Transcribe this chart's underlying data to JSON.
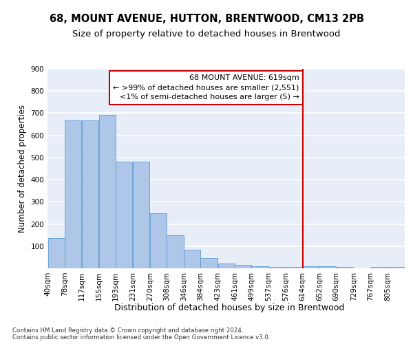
{
  "title": "68, MOUNT AVENUE, HUTTON, BRENTWOOD, CM13 2PB",
  "subtitle": "Size of property relative to detached houses in Brentwood",
  "xlabel": "Distribution of detached houses by size in Brentwood",
  "ylabel": "Number of detached properties",
  "bin_edges": [
    40,
    78,
    117,
    155,
    193,
    231,
    270,
    308,
    346,
    384,
    423,
    461,
    499,
    537,
    576,
    614,
    652,
    690,
    729,
    767,
    805
  ],
  "hist_counts": [
    137,
    667,
    668,
    693,
    480,
    480,
    247,
    148,
    85,
    48,
    22,
    16,
    10,
    7,
    5,
    9,
    8,
    6,
    1,
    5,
    7
  ],
  "bar_color": "#aec6e8",
  "bar_edge_color": "#5b9bd5",
  "vline_x": 614,
  "vline_color": "#cc0000",
  "annotation_title": "68 MOUNT AVENUE: 619sqm",
  "annotation_line1": "← >99% of detached houses are smaller (2,551)",
  "annotation_line2": "<1% of semi-detached houses are larger (5) →",
  "annotation_box_color": "#cc0000",
  "ylim": [
    0,
    900
  ],
  "yticks": [
    0,
    100,
    200,
    300,
    400,
    500,
    600,
    700,
    800,
    900
  ],
  "background_color": "#e8eef8",
  "grid_color": "#ffffff",
  "footer": "Contains HM Land Registry data © Crown copyright and database right 2024.\nContains public sector information licensed under the Open Government Licence v3.0.",
  "title_fontsize": 10.5,
  "subtitle_fontsize": 9.5,
  "xlabel_fontsize": 9,
  "ylabel_fontsize": 8.5,
  "tick_fontsize": 7.5,
  "annotation_fontsize": 8
}
